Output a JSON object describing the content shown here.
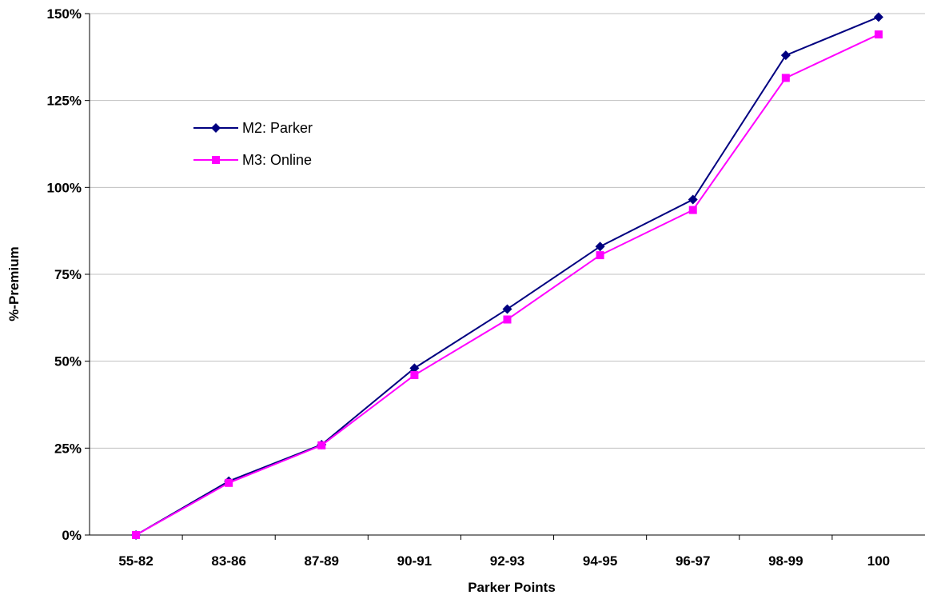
{
  "chart_data": {
    "type": "line",
    "title": "",
    "xlabel": "Parker Points",
    "ylabel": "%-Premium",
    "categories": [
      "55-82",
      "83-86",
      "87-89",
      "90-91",
      "92-93",
      "94-95",
      "96-97",
      "98-99",
      "100"
    ],
    "yticks": [
      "0%",
      "25%",
      "50%",
      "75%",
      "100%",
      "125%",
      "150%"
    ],
    "ylim": [
      0,
      150
    ],
    "y_unit": "%",
    "grid": "horizontal",
    "legend_position": "upper-left",
    "series": [
      {
        "name": "M2: Parker",
        "color": "#000080",
        "marker": "diamond",
        "values": [
          0,
          15.5,
          26,
          48,
          65,
          83,
          96.5,
          138,
          149
        ]
      },
      {
        "name": "M3: Online",
        "color": "#ff00ff",
        "marker": "square",
        "values": [
          0,
          15,
          25.8,
          46,
          62,
          80.5,
          93.5,
          131.5,
          144
        ]
      }
    ]
  }
}
